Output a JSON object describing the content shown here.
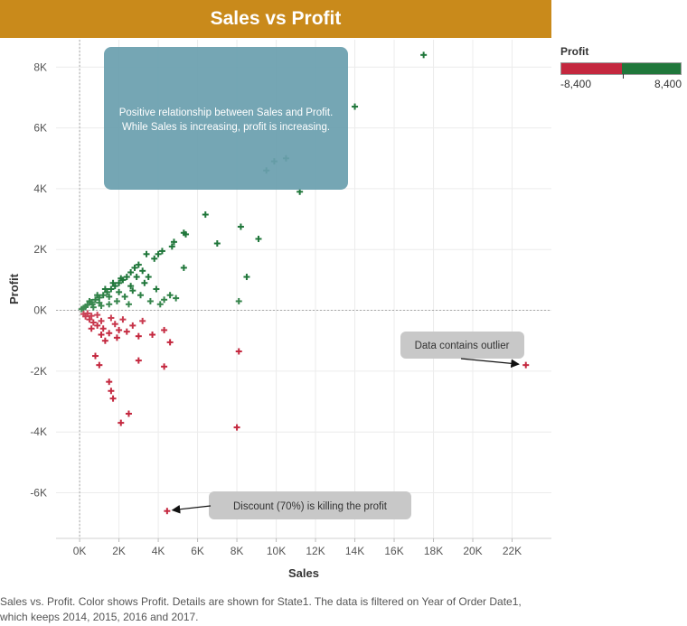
{
  "title": "Sales vs Profit",
  "legend": {
    "title": "Profit",
    "min_label": "-8,400",
    "max_label": "8,400",
    "negative_color": "#c4283f",
    "positive_color": "#20773b"
  },
  "caption": "Sales vs. Profit.  Color shows Profit.  Details are shown for State1. The data is filtered on Year of Order Date1, which keeps 2014, 2015, 2016 and 2017.",
  "chart_data": {
    "type": "scatter",
    "xlabel": "Sales",
    "ylabel": "Profit",
    "xlim": [
      -1200,
      24000
    ],
    "ylim": [
      -7500,
      8900
    ],
    "x_ticks": [
      0,
      2000,
      4000,
      6000,
      8000,
      10000,
      12000,
      14000,
      16000,
      18000,
      20000,
      22000
    ],
    "x_tick_labels": [
      "0K",
      "2K",
      "4K",
      "6K",
      "8K",
      "10K",
      "12K",
      "14K",
      "16K",
      "18K",
      "20K",
      "22K"
    ],
    "y_ticks": [
      -6000,
      -4000,
      -2000,
      0,
      2000,
      4000,
      6000,
      8000
    ],
    "y_tick_labels": [
      "-6K",
      "-4K",
      "-2K",
      "0K",
      "2K",
      "4K",
      "6K",
      "8K"
    ],
    "grid": true,
    "legend_position": "top-right",
    "marker": "plus",
    "color_by": "profit (diverging red-green)",
    "points": [
      [
        17500,
        8400
      ],
      [
        14000,
        6700
      ],
      [
        10500,
        5000
      ],
      [
        9900,
        4900
      ],
      [
        9500,
        4600
      ],
      [
        11200,
        3900
      ],
      [
        6400,
        3150
      ],
      [
        8200,
        2750
      ],
      [
        9100,
        2350
      ],
      [
        7000,
        2200
      ],
      [
        5400,
        2500
      ],
      [
        5300,
        2550
      ],
      [
        4800,
        2250
      ],
      [
        4700,
        2100
      ],
      [
        4200,
        1950
      ],
      [
        4000,
        1850
      ],
      [
        3800,
        1700
      ],
      [
        3400,
        1850
      ],
      [
        5300,
        1400
      ],
      [
        8500,
        1100
      ],
      [
        8100,
        300
      ],
      [
        4900,
        400
      ],
      [
        4600,
        500
      ],
      [
        4300,
        350
      ],
      [
        3900,
        700
      ],
      [
        3500,
        1100
      ],
      [
        3200,
        1300
      ],
      [
        3000,
        1500
      ],
      [
        2800,
        1400
      ],
      [
        2600,
        1250
      ],
      [
        2400,
        1100
      ],
      [
        2200,
        1000
      ],
      [
        2000,
        900
      ],
      [
        1800,
        800
      ],
      [
        1600,
        700
      ],
      [
        1400,
        600
      ],
      [
        1200,
        500
      ],
      [
        1000,
        420
      ],
      [
        800,
        350
      ],
      [
        600,
        270
      ],
      [
        400,
        180
      ],
      [
        300,
        120
      ],
      [
        200,
        80
      ],
      [
        100,
        40
      ],
      [
        3600,
        300
      ],
      [
        3100,
        500
      ],
      [
        2700,
        650
      ],
      [
        2300,
        450
      ],
      [
        1900,
        300
      ],
      [
        1500,
        200
      ],
      [
        1100,
        150
      ],
      [
        700,
        100
      ],
      [
        2500,
        200
      ],
      [
        4100,
        200
      ],
      [
        500,
        300
      ],
      [
        900,
        500
      ],
      [
        1300,
        700
      ],
      [
        1700,
        900
      ],
      [
        2100,
        1050
      ],
      [
        2900,
        1100
      ],
      [
        3300,
        900
      ],
      [
        2000,
        600
      ],
      [
        1500,
        450
      ],
      [
        1000,
        250
      ],
      [
        650,
        200
      ],
      [
        2600,
        800
      ],
      [
        22700,
        -1800
      ],
      [
        8000,
        -3850
      ],
      [
        8100,
        -1350
      ],
      [
        4450,
        -6600
      ],
      [
        2100,
        -3700
      ],
      [
        2500,
        -3400
      ],
      [
        1700,
        -2900
      ],
      [
        1600,
        -2650
      ],
      [
        1500,
        -2350
      ],
      [
        4300,
        -1850
      ],
      [
        3000,
        -1650
      ],
      [
        1000,
        -1800
      ],
      [
        800,
        -1500
      ],
      [
        4600,
        -1050
      ],
      [
        3700,
        -800
      ],
      [
        4300,
        -650
      ],
      [
        3000,
        -850
      ],
      [
        2400,
        -700
      ],
      [
        2000,
        -650
      ],
      [
        1500,
        -750
      ],
      [
        1200,
        -600
      ],
      [
        900,
        -500
      ],
      [
        700,
        -400
      ],
      [
        500,
        -300
      ],
      [
        300,
        -200
      ],
      [
        200,
        -120
      ],
      [
        400,
        -100
      ],
      [
        600,
        -180
      ],
      [
        1100,
        -350
      ],
      [
        1800,
        -450
      ],
      [
        2700,
        -500
      ],
      [
        1300,
        -1000
      ],
      [
        1900,
        -900
      ],
      [
        1100,
        -800
      ],
      [
        600,
        -600
      ],
      [
        2200,
        -300
      ],
      [
        3200,
        -350
      ],
      [
        1600,
        -250
      ],
      [
        900,
        -150
      ]
    ],
    "annotations": [
      {
        "text_lines": [
          "Positive relationship between Sales and Profit.",
          "While Sales is increasing, profit is increasing."
        ],
        "fill": "#6a9fae"
      },
      {
        "text_lines": [
          "Data contains outlier"
        ],
        "fill": "#c8c8c8",
        "target": [
          22700,
          -1800
        ]
      },
      {
        "text_lines": [
          "Discount (70%) is killing the profit"
        ],
        "fill": "#c8c8c8",
        "target": [
          4450,
          -6600
        ]
      }
    ]
  }
}
